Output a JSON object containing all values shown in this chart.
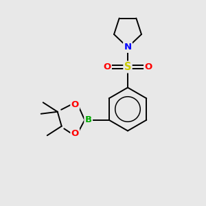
{
  "background_color": "#e8e8e8",
  "bond_color": "#000000",
  "figsize": [
    3.0,
    3.0
  ],
  "dpi": 100,
  "atom_colors": {
    "N": "#0000ff",
    "O": "#ff0000",
    "S": "#cccc00",
    "B": "#00aa00",
    "C": "#000000"
  },
  "font_size": 9.5,
  "bond_width": 1.4,
  "xlim": [
    0,
    10
  ],
  "ylim": [
    0,
    10
  ]
}
